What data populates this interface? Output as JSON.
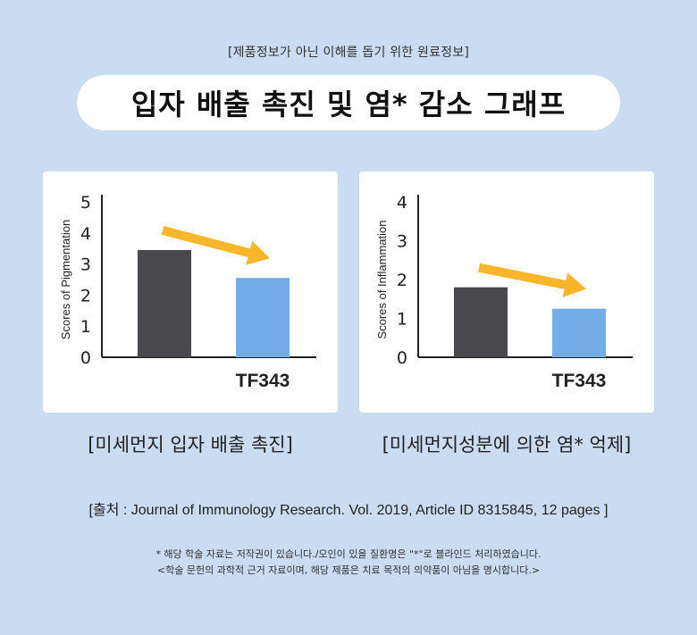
{
  "header": {
    "notice": "[제품정보가 아닌 이해를 돕기 위한 원료정보]",
    "title": "입자 배출 촉진 및 염* 감소 그래프"
  },
  "colors": {
    "background": "#c9dcf2",
    "control_bar": "#48484d",
    "treatment_bar": "#74ade6",
    "arrow": "#f9b62b"
  },
  "chart_data": [
    {
      "type": "bar",
      "ylabel": "Scores of Pigmentation",
      "ylim": [
        0,
        5
      ],
      "yticks": [
        "0",
        "1",
        "2",
        "3",
        "4",
        "5"
      ],
      "categories": [
        "",
        "TF343"
      ],
      "values": [
        3.45,
        2.55
      ],
      "trend_arrow": "decrease",
      "caption": "[미세먼지 입자 배출 촉진]"
    },
    {
      "type": "bar",
      "ylabel": "Scores of Inflammation",
      "ylim": [
        0,
        4
      ],
      "yticks": [
        "0",
        "1",
        "2",
        "3",
        "4"
      ],
      "categories": [
        "",
        "TF343"
      ],
      "values": [
        1.8,
        1.25
      ],
      "trend_arrow": "decrease",
      "caption": "[미세먼지성분에 의한 염* 억제]"
    }
  ],
  "footer": {
    "source": "[출처 : Journal of Immunology Research. Vol. 2019, Article ID 8315845, 12 pages ]",
    "footnote_1": "* 해당 학술 자료는 저작권이 있습니다./오인이 있을 질환명은 \"*\"로 블라인드 처리하였습니다.",
    "footnote_2": "<학술 문헌의 과학적 근거 자료이며, 해당 제품은 치료 목적의 의약품이 아님을 명시합니다.>"
  }
}
